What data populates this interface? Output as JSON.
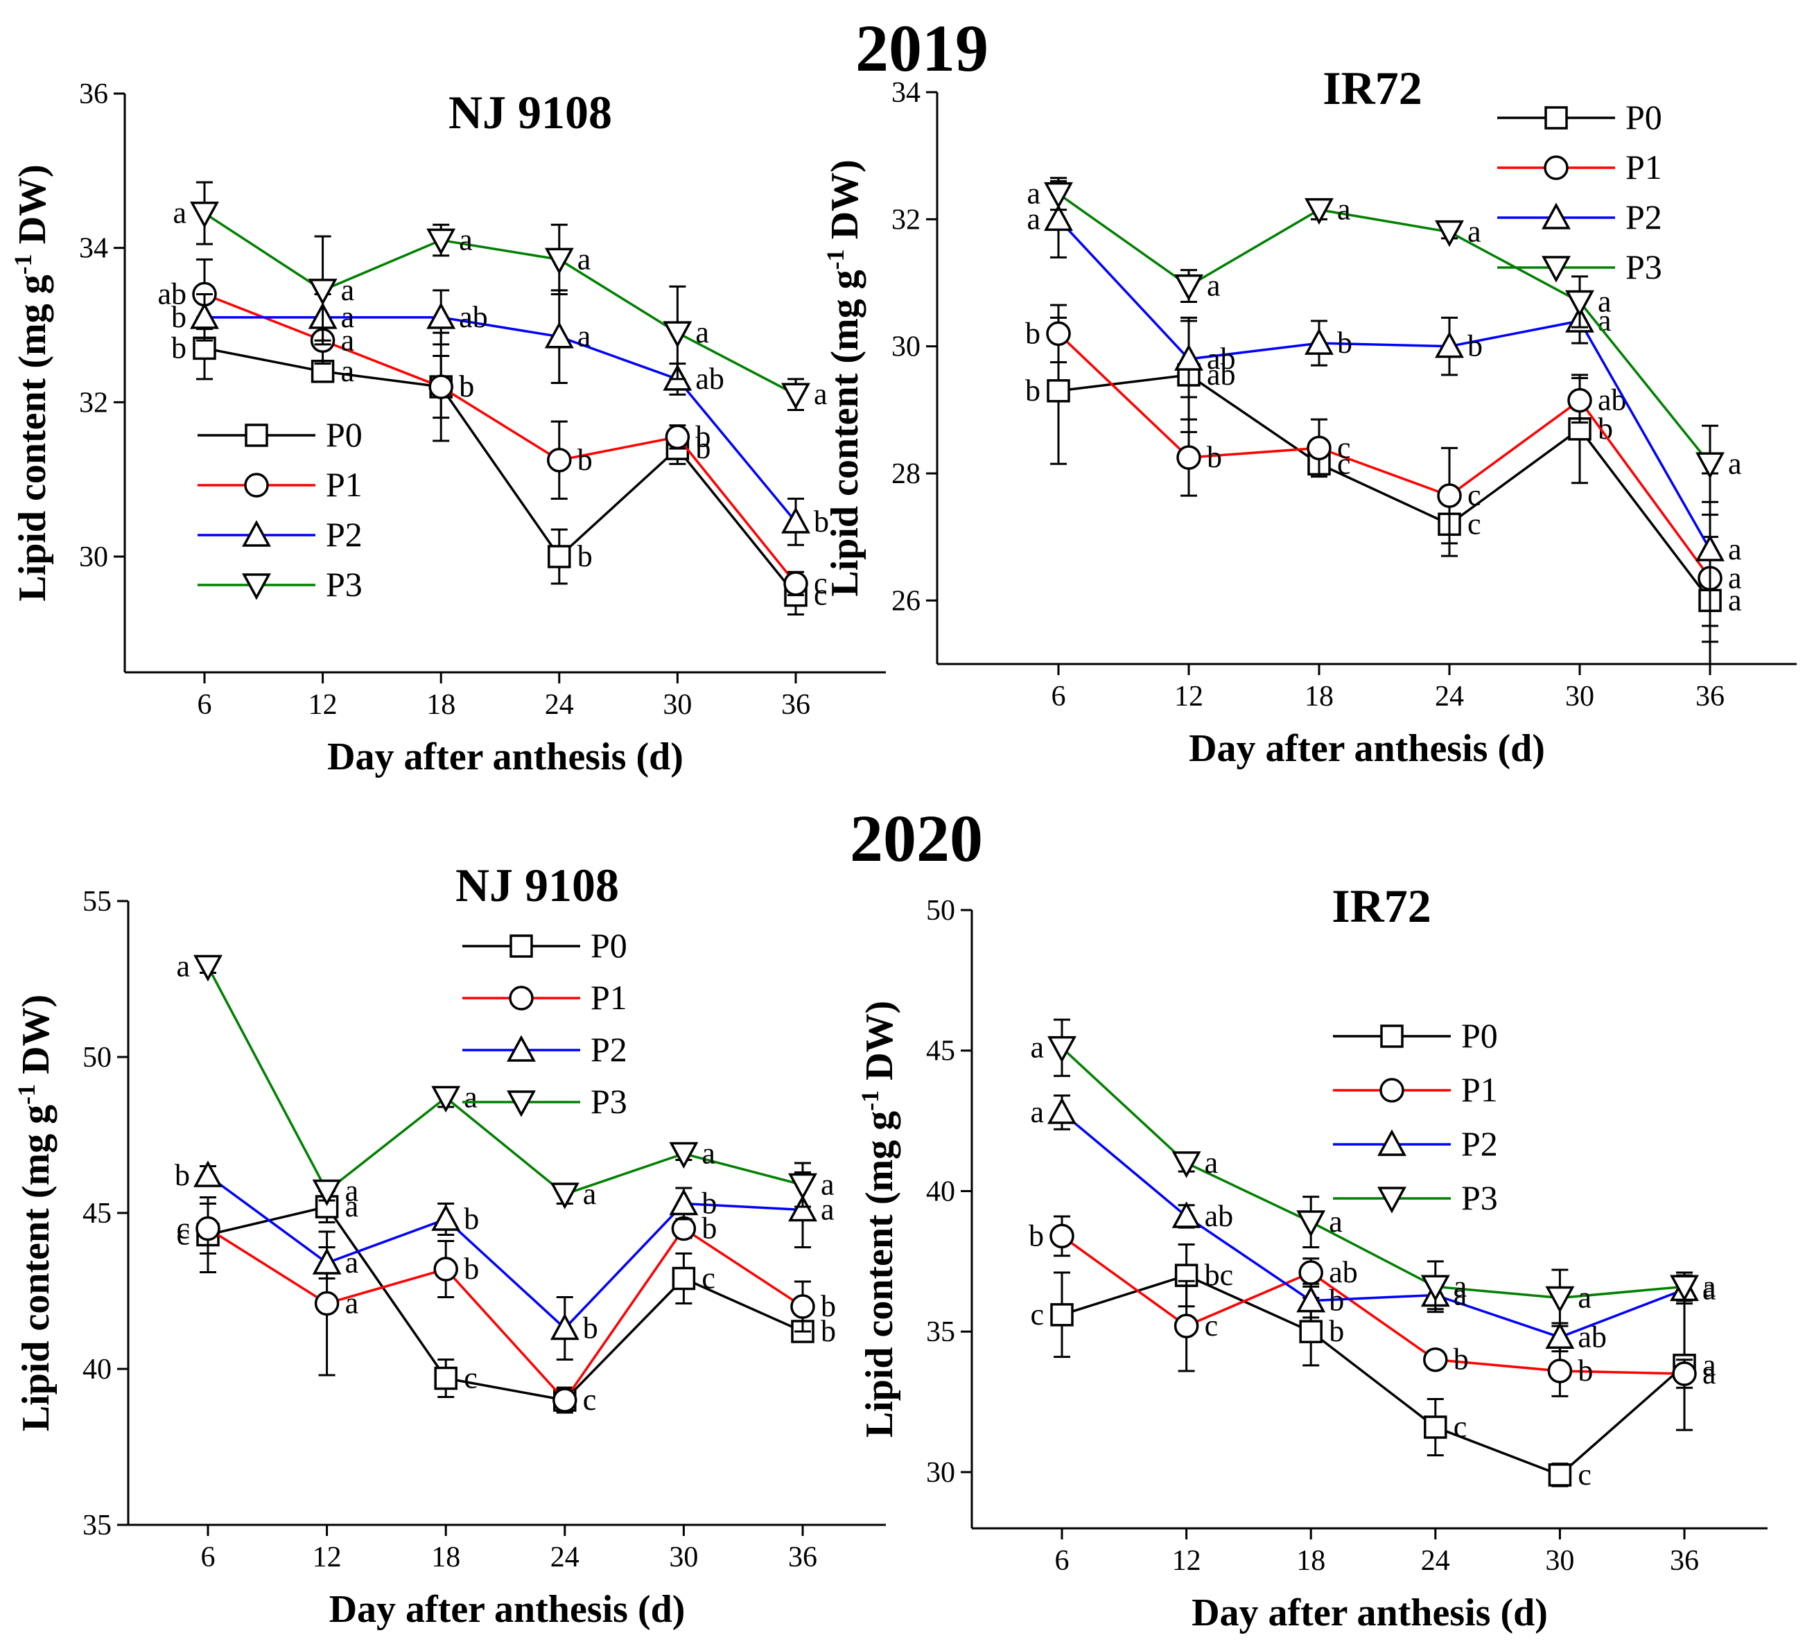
{
  "figure": {
    "year_titles": [
      "2019",
      "2020"
    ]
  },
  "chart_data": [
    {
      "type": "line",
      "year": "2019",
      "title": "NJ 9108",
      "xlabel": "Day after anthesis (d)",
      "ylabel_parts": [
        "Lipid content (mg g",
        "-1",
        " DW)"
      ],
      "x": [
        6,
        12,
        18,
        24,
        30,
        36
      ],
      "ylim": [
        28.5,
        36
      ],
      "yticks": [
        30,
        32,
        34,
        36
      ],
      "legend_position": "bottom-left",
      "colors": {
        "P0": "#000000",
        "P1": "#ff0000",
        "P2": "#0000ff",
        "P3": "#008000"
      },
      "series": [
        {
          "name": "P0",
          "marker": "square",
          "values": [
            32.7,
            32.4,
            32.2,
            30.0,
            31.4,
            29.5
          ],
          "errors": [
            0.4,
            0.1,
            0.7,
            0.35,
            0.2,
            0.25
          ],
          "letters": [
            "b",
            "a",
            "b",
            "b",
            "b",
            "c"
          ]
        },
        {
          "name": "P1",
          "marker": "circle",
          "values": [
            33.4,
            32.8,
            32.2,
            31.25,
            31.55,
            29.65
          ],
          "errors": [
            0.45,
            0.3,
            0.4,
            0.5,
            0.15,
            0.15
          ],
          "letters": [
            "ab",
            "a",
            "b",
            "b",
            "b",
            "c"
          ]
        },
        {
          "name": "P2",
          "marker": "triangle-up",
          "values": [
            33.1,
            33.1,
            33.1,
            32.85,
            32.3,
            30.45
          ],
          "errors": [
            0.3,
            0.3,
            0.35,
            0.6,
            0.2,
            0.3
          ],
          "letters": [
            "b",
            "a",
            "ab",
            "a",
            "ab",
            "b"
          ]
        },
        {
          "name": "P3",
          "marker": "triangle-down",
          "values": [
            34.45,
            33.45,
            34.1,
            33.85,
            32.9,
            32.1
          ],
          "errors": [
            0.4,
            0.7,
            0.2,
            0.45,
            0.6,
            0.2
          ],
          "letters": [
            "a",
            "a",
            "a",
            "a",
            "a",
            "a"
          ]
        }
      ]
    },
    {
      "type": "line",
      "year": "2019",
      "title": "IR72",
      "xlabel": "Day after anthesis (d)",
      "ylabel_parts": [
        "Lipid content (mg g",
        "-1",
        " DW)"
      ],
      "x": [
        6,
        12,
        18,
        24,
        30,
        36
      ],
      "ylim": [
        25,
        34
      ],
      "yticks": [
        26,
        28,
        30,
        32,
        34
      ],
      "legend_position": "top-right",
      "colors": {
        "P0": "#000000",
        "P1": "#ff0000",
        "P2": "#0000ff",
        "P3": "#008000"
      },
      "series": [
        {
          "name": "P0",
          "marker": "square",
          "values": [
            29.3,
            29.55,
            28.15,
            27.2,
            28.7,
            26.0
          ],
          "errors": [
            1.15,
            0.9,
            0.15,
            0.5,
            0.85,
            1.0
          ],
          "letters": [
            "b",
            "ab",
            "c",
            "c",
            "b",
            "a"
          ]
        },
        {
          "name": "P1",
          "marker": "circle",
          "values": [
            30.2,
            28.25,
            28.4,
            27.65,
            29.15,
            26.35
          ],
          "errors": [
            0.45,
            0.6,
            0.45,
            0.75,
            0.35,
            1.0
          ],
          "letters": [
            "b",
            "b",
            "c",
            "c",
            "ab",
            "a"
          ]
        },
        {
          "name": "P2",
          "marker": "triangle-up",
          "values": [
            32.0,
            29.8,
            30.05,
            30.0,
            30.4,
            26.8
          ],
          "errors": [
            0.6,
            0.6,
            0.35,
            0.45,
            0.35,
            1.2
          ],
          "letters": [
            "a",
            "ab",
            "b",
            "b",
            "a",
            "a"
          ]
        },
        {
          "name": "P3",
          "marker": "triangle-down",
          "values": [
            32.4,
            30.95,
            32.15,
            31.8,
            30.7,
            28.15
          ],
          "errors": [
            0.25,
            0.25,
            0.15,
            0.1,
            0.4,
            0.6
          ],
          "letters": [
            "a",
            "a",
            "a",
            "a",
            "a",
            "a"
          ]
        }
      ]
    },
    {
      "type": "line",
      "year": "2020",
      "title": "NJ 9108",
      "xlabel": "Day after anthesis (d)",
      "ylabel_parts": [
        "Lipid content (mg g",
        "-1",
        " DW)"
      ],
      "x": [
        6,
        12,
        18,
        24,
        30,
        36
      ],
      "ylim": [
        35,
        55
      ],
      "yticks": [
        35,
        40,
        45,
        50,
        55
      ],
      "legend_position": "top-right",
      "colors": {
        "P0": "#000000",
        "P1": "#ff0000",
        "P2": "#0000ff",
        "P3": "#008000"
      },
      "series": [
        {
          "name": "P0",
          "marker": "square",
          "values": [
            44.3,
            45.2,
            39.7,
            39.0,
            42.9,
            41.2
          ],
          "errors": [
            1.2,
            0.5,
            0.6,
            0.4,
            0.8,
            0.3
          ],
          "letters": [
            "c",
            "a",
            "c",
            "c",
            "c",
            "b"
          ]
        },
        {
          "name": "P1",
          "marker": "circle",
          "values": [
            44.5,
            42.1,
            43.2,
            39.0,
            44.5,
            42.0
          ],
          "errors": [
            0.8,
            2.3,
            0.9,
            0.3,
            0.3,
            0.8
          ],
          "letters": [
            "c",
            "a",
            "b",
            "c",
            "b",
            "b"
          ]
        },
        {
          "name": "P2",
          "marker": "triangle-up",
          "values": [
            46.2,
            43.4,
            44.8,
            41.3,
            45.3,
            45.1
          ],
          "errors": [
            0.3,
            0.5,
            0.5,
            1.0,
            0.5,
            1.2
          ],
          "letters": [
            "b",
            "a",
            "b",
            "b",
            "b",
            "a"
          ]
        },
        {
          "name": "P3",
          "marker": "triangle-down",
          "values": [
            52.9,
            45.7,
            48.7,
            45.6,
            46.9,
            45.9
          ],
          "errors": [
            0.2,
            0.3,
            0.3,
            0.3,
            0.2,
            0.7
          ],
          "letters": [
            "a",
            "a",
            "a",
            "a",
            "a",
            "a"
          ]
        }
      ]
    },
    {
      "type": "line",
      "year": "2020",
      "title": "IR72",
      "xlabel": "Day after anthesis (d)",
      "ylabel_parts": [
        "Lipid content (mg g",
        "-1",
        " DW)"
      ],
      "x": [
        6,
        12,
        18,
        24,
        30,
        36
      ],
      "ylim": [
        28,
        50
      ],
      "yticks": [
        30,
        35,
        40,
        45,
        50
      ],
      "legend_position": "top-right",
      "colors": {
        "P0": "#000000",
        "P1": "#ff0000",
        "P2": "#0000ff",
        "P3": "#008000"
      },
      "series": [
        {
          "name": "P0",
          "marker": "square",
          "values": [
            35.6,
            37.0,
            35.0,
            31.6,
            29.9,
            33.8
          ],
          "errors": [
            1.5,
            1.1,
            1.2,
            1.0,
            0.4,
            2.3
          ],
          "letters": [
            "c",
            "bc",
            "b",
            "c",
            "c",
            "a"
          ]
        },
        {
          "name": "P1",
          "marker": "circle",
          "values": [
            38.4,
            35.2,
            37.1,
            34.0,
            33.6,
            33.5
          ],
          "errors": [
            0.7,
            1.6,
            0.5,
            0.3,
            0.9,
            0.5
          ],
          "letters": [
            "b",
            "c",
            "ab",
            "b",
            "b",
            "a"
          ]
        },
        {
          "name": "P2",
          "marker": "triangle-up",
          "values": [
            42.8,
            39.1,
            36.1,
            36.3,
            34.8,
            36.5
          ],
          "errors": [
            0.6,
            0.4,
            0.6,
            0.5,
            0.5,
            0.5
          ],
          "letters": [
            "a",
            "ab",
            "b",
            "a",
            "ab",
            "a"
          ]
        },
        {
          "name": "P3",
          "marker": "triangle-down",
          "values": [
            45.1,
            41.0,
            38.9,
            36.6,
            36.2,
            36.6
          ],
          "errors": [
            1.0,
            0.3,
            0.9,
            0.9,
            1.0,
            0.5
          ],
          "letters": [
            "a",
            "a",
            "a",
            "a",
            "a",
            "a"
          ]
        }
      ]
    }
  ]
}
